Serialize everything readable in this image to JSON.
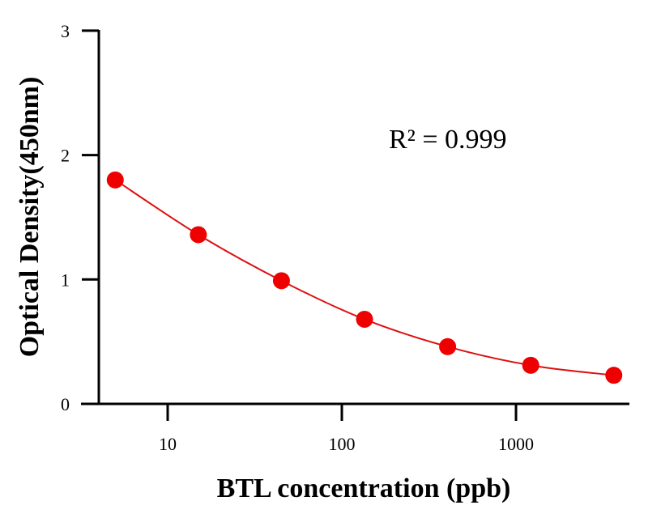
{
  "chart_data": {
    "type": "scatter",
    "title": "",
    "xlabel": "BTL concentration (ppb)",
    "ylabel": "Optical Density(450nm)",
    "xscale": "log",
    "xlim": [
      3.2,
      4400
    ],
    "ylim": [
      0,
      3
    ],
    "x_ticks": [
      10,
      100,
      1000
    ],
    "x_tick_labels": [
      "10",
      "100",
      "1000"
    ],
    "y_ticks": [
      0,
      1,
      2,
      3
    ],
    "y_tick_labels": [
      "0",
      "1",
      "2",
      "3"
    ],
    "grid": false,
    "annotation": "R² = 0.999",
    "series": [
      {
        "x": [
          5,
          15,
          45,
          135,
          405,
          1215,
          3645
        ],
        "y": [
          1.8,
          1.36,
          0.99,
          0.68,
          0.46,
          0.31,
          0.23
        ],
        "color": "#ee0000",
        "fit_line": true
      }
    ]
  }
}
